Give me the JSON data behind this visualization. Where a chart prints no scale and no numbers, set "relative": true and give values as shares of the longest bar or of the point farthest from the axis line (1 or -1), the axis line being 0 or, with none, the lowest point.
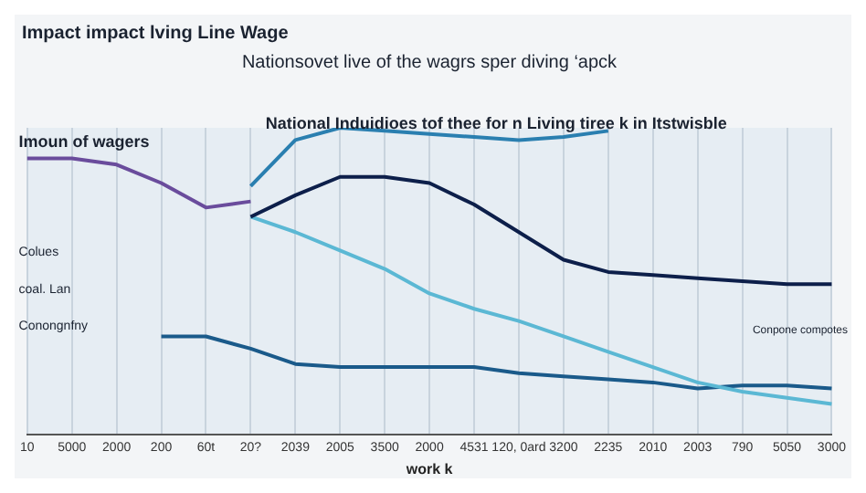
{
  "chart_data": {
    "type": "line",
    "title": "Impact impact lving Line Wage",
    "subtitle": "Nationsovet live of the wagrs sper diving ‘apck",
    "xlabel": "work k",
    "relative": true,
    "grid": "x",
    "legend": false,
    "marker": "none",
    "line_style": "solid",
    "categories": [
      "10",
      "5000",
      "2000",
      "200",
      "60t",
      "20?",
      "2039",
      "2005",
      "3500",
      "2000",
      "4531",
      "120, 0ard",
      "3200",
      "2235",
      "2010",
      "2003",
      "790",
      "5050",
      "3000"
    ],
    "annotations": [
      "National Induidioes tof thee for n Living tiree k in Itstwisble",
      "Imoun of wagers",
      "Colues",
      "coal. Lan",
      "Conongnfny",
      "Conpone compotes"
    ],
    "series": [
      {
        "color": "#6a4c9c",
        "values": [
          0.9,
          0.9,
          0.88,
          0.82,
          0.74,
          0.76,
          null,
          null,
          null,
          null,
          null,
          null,
          null,
          null,
          null,
          null,
          null,
          null,
          null
        ]
      },
      {
        "color": "#2a7fb0",
        "values": [
          null,
          null,
          null,
          null,
          null,
          0.81,
          0.96,
          1.0,
          0.99,
          0.98,
          0.97,
          0.96,
          0.97,
          0.99,
          null,
          null,
          null,
          null,
          null
        ]
      },
      {
        "color": "#0d1f4a",
        "values": [
          null,
          null,
          null,
          null,
          null,
          0.71,
          0.78,
          0.84,
          0.84,
          0.82,
          0.75,
          0.66,
          0.57,
          0.53,
          0.52,
          0.51,
          0.5,
          0.49,
          0.49
        ]
      },
      {
        "color": "#5bb8d4",
        "values": [
          null,
          null,
          null,
          null,
          null,
          0.71,
          0.66,
          0.6,
          0.54,
          0.46,
          0.41,
          0.37,
          0.32,
          0.27,
          0.22,
          0.17,
          0.14,
          0.12,
          0.1
        ]
      },
      {
        "color": "#1a5a8a",
        "values": [
          null,
          null,
          null,
          0.32,
          0.32,
          0.28,
          0.23,
          0.22,
          0.22,
          0.22,
          0.22,
          0.2,
          0.19,
          0.18,
          0.17,
          0.15,
          0.16,
          0.16,
          0.15
        ]
      }
    ]
  }
}
